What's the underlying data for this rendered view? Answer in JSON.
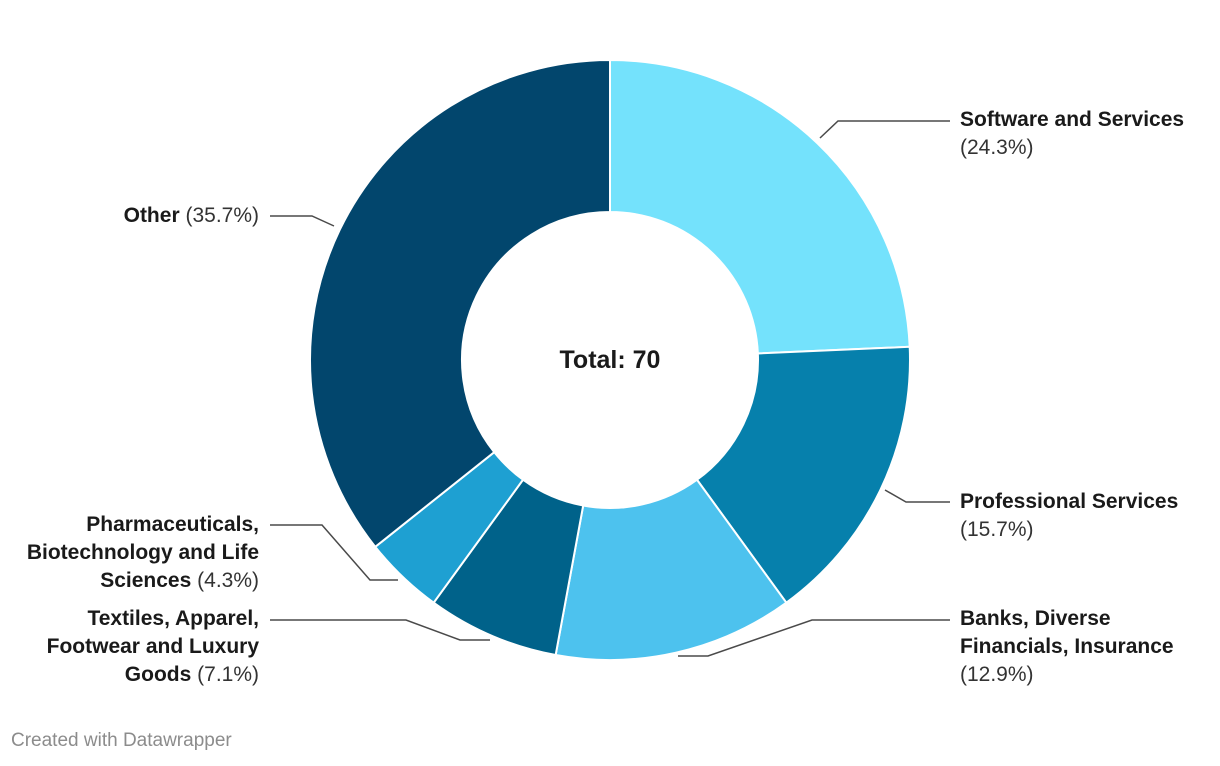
{
  "chart_data": {
    "type": "donut",
    "center_label": "Total: 70",
    "slices": [
      {
        "label_lines": [
          "Software and Services"
        ],
        "pct_label": "(24.3%)",
        "value": 24.3,
        "color": "#74e2fc"
      },
      {
        "label_lines": [
          "Professional Services"
        ],
        "pct_label": "(15.7%)",
        "value": 15.7,
        "color": "#0680ac"
      },
      {
        "label_lines": [
          "Banks, Diverse",
          "Financials, Insurance"
        ],
        "pct_label": "(12.9%)",
        "value": 12.9,
        "color": "#4dc2ee"
      },
      {
        "label_lines": [
          "Textiles, Apparel,",
          "Footwear and Luxury",
          "Goods"
        ],
        "pct_label": "(7.1%)",
        "value": 7.1,
        "color": "#00628a"
      },
      {
        "label_lines": [
          "Pharmaceuticals,",
          "Biotechnology and Life",
          "Sciences"
        ],
        "pct_label": "(4.3%)",
        "value": 4.3,
        "color": "#1ea0d2"
      },
      {
        "label_lines": [
          "Other"
        ],
        "pct_label": "(35.7%)",
        "value": 35.7,
        "color": "#02466d"
      }
    ]
  },
  "footer": "Created with Datawrapper"
}
